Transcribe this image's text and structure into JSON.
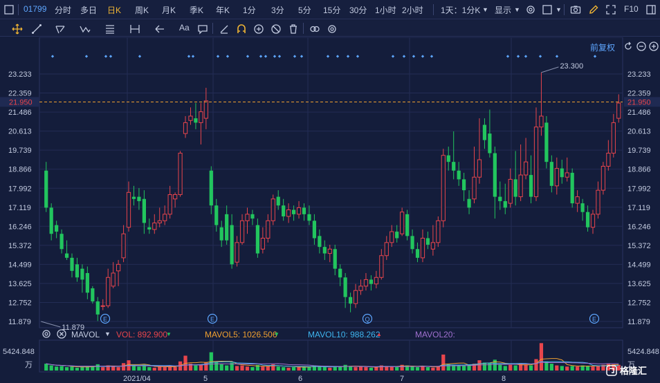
{
  "topbar": {
    "stock_code": "01799",
    "periods": [
      "分时",
      "多日",
      "日K",
      "周K",
      "月K",
      "季K",
      "年K",
      "1分",
      "3分",
      "5分",
      "15分",
      "30分",
      "1小时",
      "2小时"
    ],
    "active_period": "日K",
    "dropdown_label": "1天：1分K",
    "display_label": "显示",
    "f10_label": "F10"
  },
  "toolbar": {
    "text_tool_label": "Aa"
  },
  "chart": {
    "adjust_label": "前复权",
    "current_price": "21.950",
    "high_annotation": "23.300",
    "low_annotation": "11.879",
    "event_marker": "E",
    "event_marker_q": "Q"
  },
  "volume": {
    "indicator": "MAVOL",
    "vol": "VOL: 892.900",
    "mavol5": "MAVOL5: 1026.506",
    "mavol10": "MAVOL10: 988.262",
    "mavol20": "MAVOL20:",
    "max_label": "5424.848",
    "unit": "万"
  },
  "colors": {
    "up": "#e8454c",
    "down": "#22c55e",
    "accent": "#f0b534",
    "link": "#5ea6ff",
    "background": "#141d3b",
    "mavol5": "#f0a030",
    "mavol10": "#3fb6f0",
    "mavol20": "#a070d0"
  },
  "chart_data": {
    "type": "candlestick",
    "y_ticks": [
      "23.233",
      "22.359",
      "21.486",
      "20.613",
      "19.739",
      "18.866",
      "17.992",
      "17.119",
      "16.246",
      "15.372",
      "14.499",
      "13.625",
      "12.752",
      "11.879"
    ],
    "x_ticks": [
      "2021/04",
      "5",
      "6",
      "7",
      "8"
    ],
    "ylim": [
      11.879,
      23.233
    ],
    "last_price": 21.95,
    "high": 23.3,
    "low": 11.879,
    "candles": [
      [
        18.8,
        17.1,
        19.2,
        16.9
      ],
      [
        17.1,
        15.9,
        17.3,
        15.6
      ],
      [
        16.3,
        16.0,
        16.5,
        15.7
      ],
      [
        15.9,
        15.2,
        16.1,
        15.0
      ],
      [
        15.0,
        14.8,
        15.6,
        14.7
      ],
      [
        14.8,
        14.2,
        15.0,
        13.9
      ],
      [
        14.5,
        13.9,
        14.8,
        13.7
      ],
      [
        14.3,
        13.8,
        14.5,
        13.2
      ],
      [
        14.1,
        13.2,
        14.4,
        12.9
      ],
      [
        13.4,
        12.8,
        13.5,
        12.7
      ],
      [
        12.8,
        12.2,
        13.0,
        11.9
      ],
      [
        12.6,
        12.6,
        12.9,
        12.4
      ],
      [
        12.6,
        13.9,
        14.3,
        12.5
      ],
      [
        13.5,
        14.1,
        14.6,
        13.4
      ],
      [
        14.2,
        14.5,
        14.7,
        13.5
      ],
      [
        14.8,
        15.9,
        16.3,
        14.6
      ],
      [
        16.2,
        17.8,
        18.3,
        16.0
      ],
      [
        17.6,
        17.5,
        18.1,
        17.2
      ],
      [
        17.6,
        17.4,
        18.0,
        17.0
      ],
      [
        17.5,
        16.4,
        17.9,
        15.9
      ],
      [
        16.2,
        16.1,
        16.6,
        15.9
      ],
      [
        16.1,
        16.4,
        16.8,
        15.9
      ],
      [
        16.4,
        16.5,
        17.1,
        16.2
      ],
      [
        16.5,
        16.8,
        17.2,
        16.3
      ],
      [
        16.8,
        17.7,
        18.1,
        16.6
      ],
      [
        17.5,
        17.7,
        17.8,
        17.1
      ],
      [
        17.7,
        19.6,
        19.7,
        17.6
      ],
      [
        20.5,
        21.0,
        21.3,
        20.3
      ],
      [
        21.1,
        21.3,
        21.7,
        20.9
      ],
      [
        21.2,
        21.0,
        21.9,
        20.7
      ],
      [
        21.0,
        21.5,
        21.9,
        20.0
      ],
      [
        21.2,
        22.0,
        22.6,
        20.7
      ],
      [
        18.8,
        17.2,
        19.0,
        16.8
      ],
      [
        17.2,
        16.3,
        17.5,
        16.0
      ],
      [
        16.2,
        15.6,
        16.5,
        15.3
      ],
      [
        16.8,
        15.6,
        17.2,
        15.4
      ],
      [
        16.3,
        14.5,
        16.8,
        14.3
      ],
      [
        14.6,
        15.5,
        15.8,
        14.4
      ],
      [
        15.5,
        16.5,
        16.8,
        15.4
      ],
      [
        16.5,
        16.8,
        17.1,
        15.9
      ],
      [
        16.8,
        16.6,
        17.0,
        16.3
      ],
      [
        16.3,
        15.0,
        16.6,
        14.8
      ],
      [
        15.2,
        15.7,
        16.2,
        15.0
      ],
      [
        15.7,
        16.5,
        16.8,
        15.5
      ],
      [
        16.5,
        17.5,
        17.7,
        16.3
      ],
      [
        17.6,
        17.2,
        17.9,
        17.0
      ],
      [
        17.2,
        16.7,
        17.5,
        16.5
      ],
      [
        16.7,
        17.0,
        17.3,
        16.4
      ],
      [
        17.0,
        16.8,
        17.2,
        16.5
      ],
      [
        16.8,
        17.1,
        17.4,
        16.6
      ],
      [
        17.1,
        16.8,
        17.3,
        16.5
      ],
      [
        16.8,
        16.5,
        17.2,
        16.3
      ],
      [
        16.5,
        15.7,
        16.8,
        15.4
      ],
      [
        15.8,
        15.3,
        16.1,
        15.0
      ],
      [
        15.3,
        15.0,
        15.6,
        14.7
      ],
      [
        15.0,
        15.2,
        15.4,
        14.6
      ],
      [
        15.2,
        14.3,
        15.4,
        14.0
      ],
      [
        14.3,
        13.9,
        14.5,
        13.5
      ],
      [
        13.9,
        13.0,
        14.1,
        12.5
      ],
      [
        13.0,
        12.7,
        13.2,
        12.3
      ],
      [
        12.7,
        13.3,
        13.6,
        12.5
      ],
      [
        13.3,
        13.5,
        13.8,
        13.1
      ],
      [
        13.5,
        13.8,
        14.1,
        13.3
      ],
      [
        13.8,
        13.6,
        14.0,
        13.3
      ],
      [
        13.6,
        13.9,
        14.2,
        13.4
      ],
      [
        13.9,
        14.9,
        15.2,
        13.8
      ],
      [
        14.9,
        15.5,
        15.8,
        14.7
      ],
      [
        15.5,
        16.0,
        16.3,
        15.3
      ],
      [
        16.0,
        15.7,
        16.3,
        15.5
      ],
      [
        15.9,
        16.9,
        17.1,
        15.8
      ],
      [
        16.8,
        15.8,
        17.0,
        15.6
      ],
      [
        15.8,
        15.2,
        16.1,
        15.0
      ],
      [
        15.2,
        14.8,
        15.5,
        14.6
      ],
      [
        14.8,
        15.7,
        16.1,
        14.6
      ],
      [
        15.7,
        15.4,
        16.0,
        15.2
      ],
      [
        15.2,
        15.5,
        16.3,
        14.9
      ],
      [
        15.5,
        16.5,
        16.7,
        15.3
      ],
      [
        16.5,
        19.5,
        19.8,
        16.2
      ],
      [
        19.5,
        19.2,
        19.9,
        18.8
      ],
      [
        19.2,
        18.8,
        20.6,
        18.4
      ],
      [
        18.8,
        18.4,
        19.2,
        18.1
      ],
      [
        18.4,
        17.9,
        18.7,
        17.4
      ],
      [
        17.5,
        17.1,
        17.9,
        16.8
      ],
      [
        17.5,
        18.5,
        19.9,
        17.3
      ],
      [
        18.5,
        19.3,
        21.2,
        18.2
      ],
      [
        20.9,
        20.2,
        21.2,
        19.8
      ],
      [
        20.5,
        19.6,
        21.6,
        19.4
      ],
      [
        19.6,
        17.6,
        19.9,
        16.6
      ],
      [
        17.6,
        17.4,
        18.3,
        17.0
      ],
      [
        17.4,
        17.1,
        18.2,
        16.8
      ],
      [
        17.3,
        18.4,
        18.9,
        17.1
      ],
      [
        18.4,
        17.6,
        19.7,
        17.2
      ],
      [
        17.6,
        18.6,
        20.0,
        17.4
      ],
      [
        18.6,
        19.2,
        20.3,
        18.4
      ],
      [
        18.6,
        17.6,
        19.5,
        17.3
      ],
      [
        17.6,
        20.8,
        21.7,
        17.4
      ],
      [
        20.8,
        21.3,
        23.3,
        20.4
      ],
      [
        21.0,
        19.2,
        21.3,
        18.9
      ],
      [
        19.2,
        18.1,
        19.5,
        17.8
      ],
      [
        18.1,
        18.9,
        19.4,
        17.7
      ],
      [
        18.9,
        18.5,
        19.3,
        18.2
      ],
      [
        18.5,
        18.7,
        19.4,
        18.3
      ],
      [
        18.7,
        17.3,
        18.9,
        17.1
      ],
      [
        17.3,
        17.6,
        17.9,
        16.9
      ],
      [
        17.3,
        16.9,
        17.5,
        16.5
      ],
      [
        16.9,
        16.2,
        17.2,
        16.0
      ],
      [
        16.2,
        16.8,
        17.0,
        15.9
      ],
      [
        16.8,
        17.9,
        18.3,
        16.6
      ],
      [
        17.9,
        19.0,
        19.2,
        17.7
      ],
      [
        19.0,
        19.6,
        20.2,
        18.8
      ],
      [
        19.6,
        21.0,
        21.4,
        19.4
      ],
      [
        21.2,
        21.9,
        22.3,
        21.0
      ]
    ],
    "volumes": [
      1.2,
      0.9,
      0.7,
      0.8,
      0.6,
      0.7,
      0.5,
      0.6,
      0.8,
      0.7,
      1.1,
      0.6,
      0.9,
      0.7,
      0.6,
      1.3,
      1.8,
      0.8,
      0.7,
      1.0,
      0.6,
      0.5,
      0.7,
      0.6,
      0.9,
      0.6,
      1.6,
      2.6,
      1.2,
      0.9,
      1.0,
      1.4,
      3.2,
      1.5,
      1.1,
      0.9,
      1.4,
      0.8,
      0.9,
      0.7,
      0.6,
      1.0,
      0.7,
      0.8,
      1.1,
      0.7,
      0.6,
      0.5,
      0.6,
      0.7,
      0.6,
      0.7,
      0.9,
      0.7,
      0.6,
      0.5,
      0.8,
      0.7,
      1.0,
      0.8,
      0.6,
      0.7,
      0.6,
      0.5,
      0.6,
      0.9,
      0.8,
      0.7,
      0.6,
      1.0,
      0.9,
      0.7,
      0.6,
      0.8,
      0.6,
      0.5,
      0.8,
      2.8,
      1.1,
      1.0,
      0.8,
      0.9,
      1.0,
      1.2,
      1.8,
      1.4,
      1.3,
      1.9,
      1.0,
      0.8,
      1.0,
      0.9,
      1.3,
      1.0,
      0.9,
      2.0,
      4.8,
      1.6,
      1.2,
      0.9,
      0.8,
      0.7,
      0.8,
      0.7,
      0.9,
      0.8,
      0.7,
      0.9,
      1.0,
      1.2,
      1.1,
      1.0
    ]
  }
}
